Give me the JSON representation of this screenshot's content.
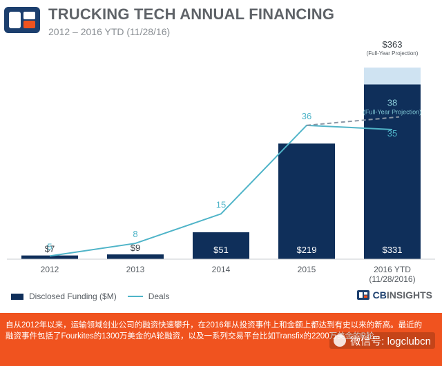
{
  "header": {
    "title": "TRUCKING TECH ANNUAL FINANCING",
    "subtitle": "2012 – 2016 YTD (11/28/16)"
  },
  "chart_data": {
    "type": "bar",
    "title": "TRUCKING TECH ANNUAL FINANCING",
    "subtitle": "2012 – 2016 YTD (11/28/16)",
    "categories": [
      "2012",
      "2013",
      "2014",
      "2015",
      "2016 YTD"
    ],
    "category_sublabels": [
      "",
      "",
      "",
      "",
      "(11/28/2016)"
    ],
    "series": [
      {
        "name": "Disclosed Funding ($M)",
        "type": "bar",
        "values": [
          7,
          9,
          51,
          219,
          331
        ],
        "labels": [
          "$7",
          "$9",
          "$51",
          "$219",
          "$331"
        ],
        "color": "#0f2f5a"
      },
      {
        "name": "Deals",
        "type": "line",
        "values": [
          5,
          8,
          15,
          36,
          35
        ],
        "labels": [
          "5",
          "8",
          "15",
          "36",
          "35"
        ],
        "color": "#4fb4c8"
      }
    ],
    "projection": {
      "category": "2016 YTD",
      "funding_value": 363,
      "funding_label": "$363",
      "funding_note": "(Full-Year Projection)",
      "deals_value": 38,
      "deals_label": "38",
      "deals_note": "(Full-Year Projection)",
      "bar_color": "#cfe3f2",
      "line_style": "dashed"
    },
    "funding_range": [
      0,
      380
    ],
    "deals_range": [
      0,
      52
    ],
    "grid": false,
    "legend_position": "bottom-left"
  },
  "legend": {
    "funding_label": "Disclosed Funding ($M)",
    "deals_label": "Deals"
  },
  "brand": {
    "prefix": "CB",
    "name": "INSIGHTS"
  },
  "footer": {
    "text": "自从2012年以来，运输领域创业公司的融资快速攀升，在2016年从投资事件上和金额上都达到有史以来的新高。最近的融资事件包括了Fourkites的1300万美金的A轮融资，以及一系列交易平台比如Transfix的2200万美金的B轮。",
    "wechat_label": "微信号: logclubcn",
    "bg_color": "#f0531f"
  },
  "colors": {
    "bar": "#0f2f5a",
    "line": "#4fb4c8",
    "axis_text": "#555b61",
    "title_text": "#5f6368"
  }
}
